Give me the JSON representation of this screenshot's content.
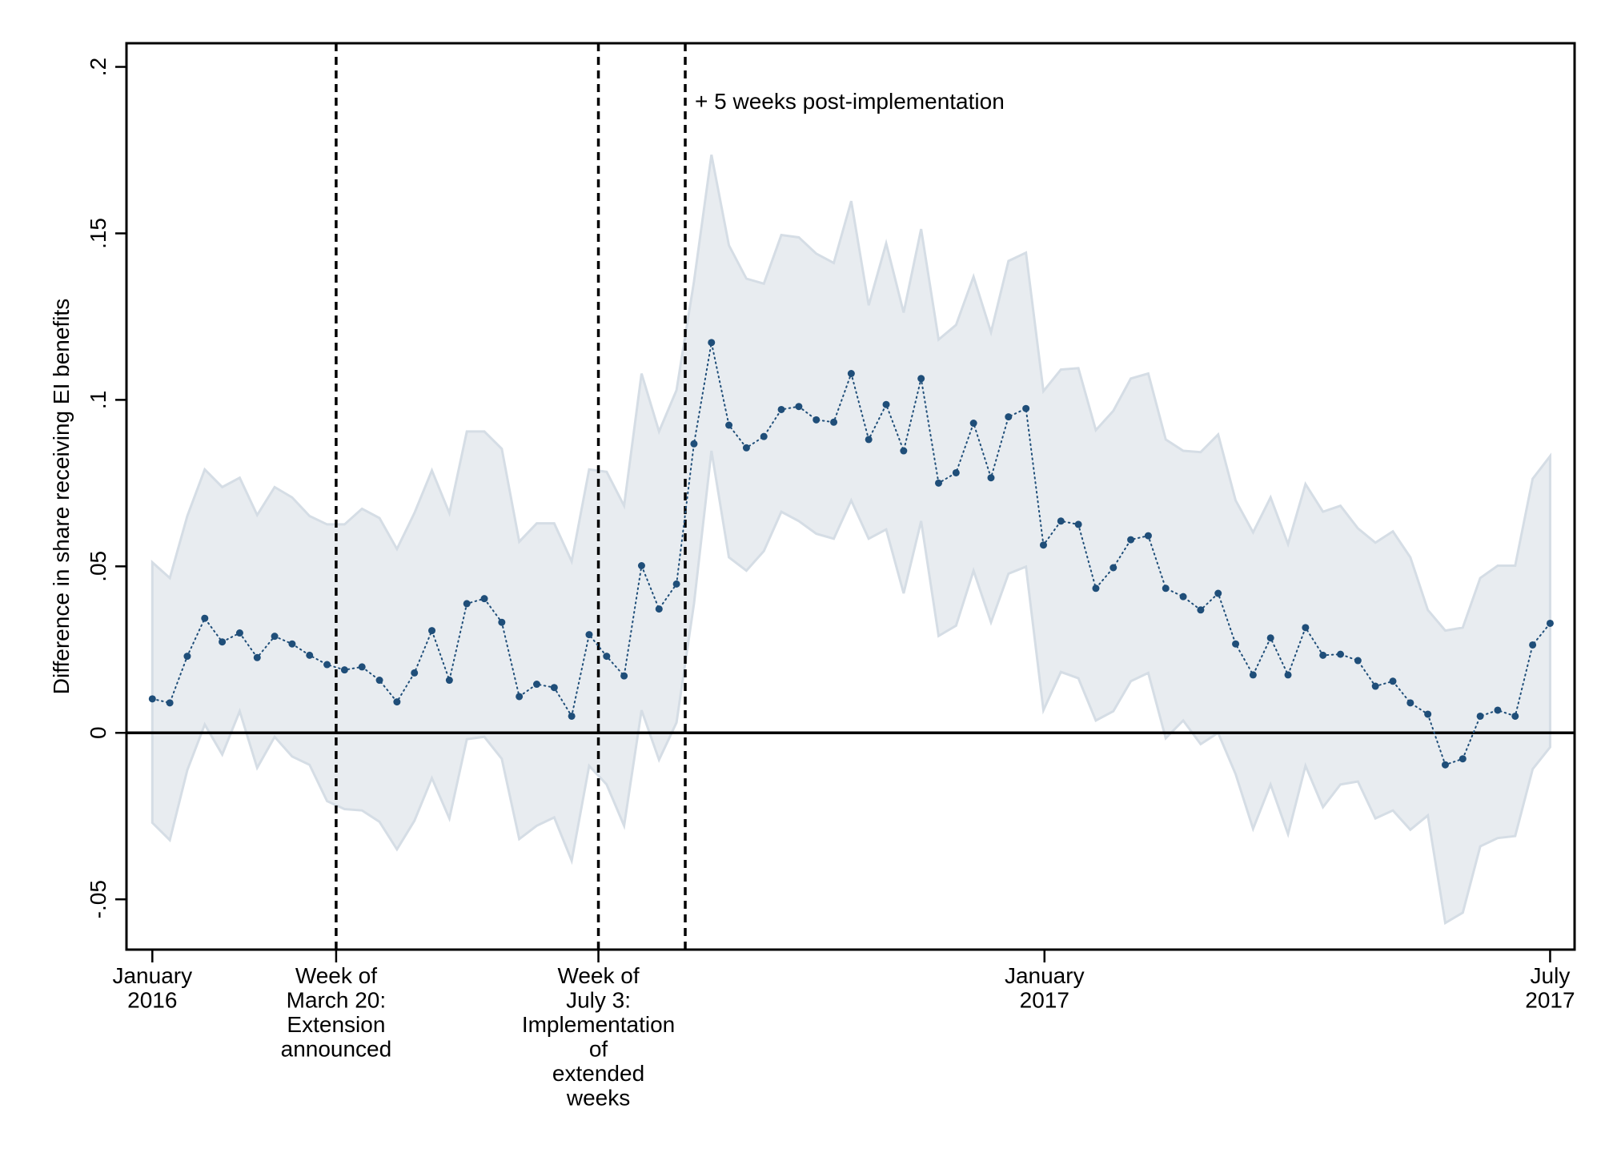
{
  "chart_data": {
    "type": "line",
    "y_label": "Difference in share receiving EI benefits",
    "annotation": "+ 5 weeks post-implementation",
    "x": [
      0,
      1,
      2,
      3,
      4,
      5,
      6,
      7,
      8,
      9,
      10,
      11,
      12,
      13,
      14,
      15,
      16,
      17,
      18,
      19,
      20,
      21,
      22,
      23,
      24,
      25,
      26,
      27,
      28,
      29,
      30,
      31,
      32,
      33,
      34,
      35,
      36,
      37,
      38,
      39,
      40,
      41,
      42,
      43,
      44,
      45,
      46,
      47,
      48,
      49,
      50,
      51,
      52,
      53,
      54,
      55,
      56,
      57,
      58,
      59,
      60,
      61,
      62,
      63,
      64,
      65,
      66,
      67,
      68,
      69,
      70,
      71,
      72,
      73,
      74,
      75,
      76,
      77,
      78,
      79,
      80
    ],
    "values": [
      0.0102,
      0.009,
      0.023,
      0.0344,
      0.0273,
      0.03,
      0.0226,
      0.029,
      0.0267,
      0.0233,
      0.0205,
      0.0189,
      0.0198,
      0.0158,
      0.0093,
      0.018,
      0.0307,
      0.0158,
      0.0388,
      0.0403,
      0.0332,
      0.0109,
      0.0146,
      0.0136,
      0.005,
      0.0295,
      0.023,
      0.0171,
      0.0502,
      0.0372,
      0.0447,
      0.0868,
      0.1172,
      0.0924,
      0.0856,
      0.089,
      0.0971,
      0.098,
      0.094,
      0.0933,
      0.1079,
      0.0881,
      0.0986,
      0.0847,
      0.1064,
      0.075,
      0.0781,
      0.093,
      0.0766,
      0.0949,
      0.0974,
      0.0564,
      0.0636,
      0.0626,
      0.0434,
      0.0496,
      0.058,
      0.0592,
      0.0434,
      0.0409,
      0.0369,
      0.0419,
      0.0267,
      0.0174,
      0.0285,
      0.0174,
      0.0316,
      0.0233,
      0.0236,
      0.0217,
      0.014,
      0.0155,
      0.009,
      0.0056,
      -0.0096,
      -0.0078,
      0.005,
      0.0068,
      0.005,
      0.0264,
      0.0329
    ],
    "ci_upper": [
      0.0512,
      0.0465,
      0.0651,
      0.0791,
      0.0738,
      0.0766,
      0.0654,
      0.0738,
      0.0707,
      0.0651,
      0.0626,
      0.0626,
      0.0673,
      0.0645,
      0.0552,
      0.066,
      0.0788,
      0.066,
      0.0905,
      0.0905,
      0.0853,
      0.0574,
      0.0629,
      0.0629,
      0.0515,
      0.0791,
      0.0784,
      0.0682,
      0.1079,
      0.0905,
      0.1029,
      0.1355,
      0.1736,
      0.1464,
      0.1364,
      0.1349,
      0.1495,
      0.1488,
      0.1439,
      0.1411,
      0.1597,
      0.1284,
      0.147,
      0.1262,
      0.1513,
      0.1181,
      0.1225,
      0.137,
      0.1203,
      0.1417,
      0.1442,
      0.1026,
      0.1091,
      0.1095,
      0.0909,
      0.0967,
      0.1064,
      0.1079,
      0.0881,
      0.0847,
      0.0843,
      0.0896,
      0.0698,
      0.0602,
      0.0707,
      0.0567,
      0.0747,
      0.0664,
      0.0682,
      0.0614,
      0.0571,
      0.0605,
      0.0527,
      0.0369,
      0.0307,
      0.0316,
      0.0465,
      0.0502,
      0.0502,
      0.0763,
      0.0831
    ],
    "ci_lower": [
      -0.027,
      -0.0322,
      -0.0112,
      0.0025,
      -0.0065,
      0.0065,
      -0.0105,
      -0.0012,
      -0.0071,
      -0.0096,
      -0.0205,
      -0.0229,
      -0.0233,
      -0.0267,
      -0.035,
      -0.0264,
      -0.0136,
      -0.0257,
      -0.0019,
      -0.0012,
      -0.0078,
      -0.0319,
      -0.0279,
      -0.0254,
      -0.0384,
      -0.0099,
      -0.0155,
      -0.0279,
      0.0068,
      -0.0081,
      0.0031,
      0.0388,
      0.0847,
      0.0527,
      0.0487,
      0.0546,
      0.0664,
      0.0636,
      0.0598,
      0.0583,
      0.0698,
      0.0583,
      0.0611,
      0.0419,
      0.0636,
      0.0291,
      0.0322,
      0.0487,
      0.0332,
      0.0478,
      0.0499,
      0.0068,
      0.0183,
      0.0164,
      0.0037,
      0.0065,
      0.0155,
      0.018,
      -0.0016,
      0.0037,
      -0.0034,
      0,
      -0.0124,
      -0.0288,
      -0.0155,
      -0.0304,
      -0.0099,
      -0.0223,
      -0.0155,
      -0.0146,
      -0.0257,
      -0.0233,
      -0.0291,
      -0.0248,
      -0.0571,
      -0.054,
      -0.0341,
      -0.0316,
      -0.031,
      -0.0109,
      -0.0043
    ],
    "color": "#1f4e79",
    "band_color": "#e8ecf0",
    "band_edge_color": "#d5dde5",
    "xlim": [
      -1.48,
      81.4
    ],
    "ylim": [
      -0.0651,
      0.2071
    ],
    "xticks": [
      {
        "value": 0,
        "label": [
          "January",
          "2016"
        ]
      },
      {
        "value": 10.52,
        "label": [
          "Week of",
          "March 20:",
          "Extension",
          "announced"
        ]
      },
      {
        "value": 25.53,
        "label": [
          "Week of",
          "July 3:",
          "Implementation",
          "of",
          "extended",
          "weeks"
        ]
      },
      {
        "value": 51.06,
        "label": [
          "January",
          "2017"
        ]
      },
      {
        "value": 80,
        "label": [
          "July",
          "2017"
        ]
      }
    ],
    "yticks": [
      {
        "value": -0.05,
        "label": "-.05"
      },
      0,
      {
        "value": 0.05,
        "label": ".05"
      },
      {
        "value": 0.1,
        "label": ".1"
      },
      {
        "value": 0.15,
        "label": ".15"
      },
      {
        "value": 0.2,
        "label": ".2"
      }
    ],
    "vlines": [
      10.52,
      25.53,
      30.5
    ],
    "hline": 0
  }
}
